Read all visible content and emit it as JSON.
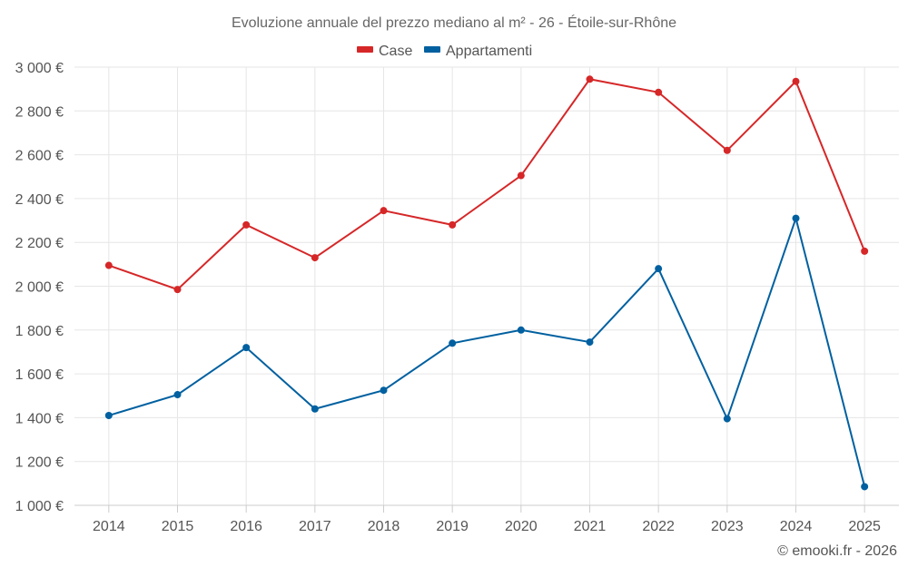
{
  "chart_data": {
    "type": "line",
    "title": "Evoluzione annuale del prezzo mediano al m² - 26 - Étoile-sur-Rhône",
    "categories": [
      "2014",
      "2015",
      "2016",
      "2017",
      "2018",
      "2019",
      "2020",
      "2021",
      "2022",
      "2023",
      "2024",
      "2025"
    ],
    "series": [
      {
        "name": "Case",
        "color": "#d62728",
        "values": [
          2095,
          1985,
          2280,
          2130,
          2345,
          2280,
          2505,
          2945,
          2885,
          2620,
          2935,
          2160
        ]
      },
      {
        "name": "Appartamenti",
        "color": "#0060a0",
        "values": [
          1410,
          1505,
          1720,
          1440,
          1525,
          1740,
          1800,
          1745,
          2080,
          1395,
          2310,
          1085
        ]
      }
    ],
    "ylim": [
      1000,
      3000
    ],
    "yticks": [
      1000,
      1200,
      1400,
      1600,
      1800,
      2000,
      2200,
      2400,
      2600,
      2800,
      3000
    ],
    "ytick_labels": [
      "1 000 €",
      "1 200 €",
      "1 400 €",
      "1 600 €",
      "1 800 €",
      "2 000 €",
      "2 200 €",
      "2 400 €",
      "2 600 €",
      "2 800 €",
      "3 000 €"
    ],
    "xlabel": "",
    "ylabel": "",
    "grid": true,
    "legend_position": "top-center"
  },
  "credit": "© emooki.fr - 2026"
}
